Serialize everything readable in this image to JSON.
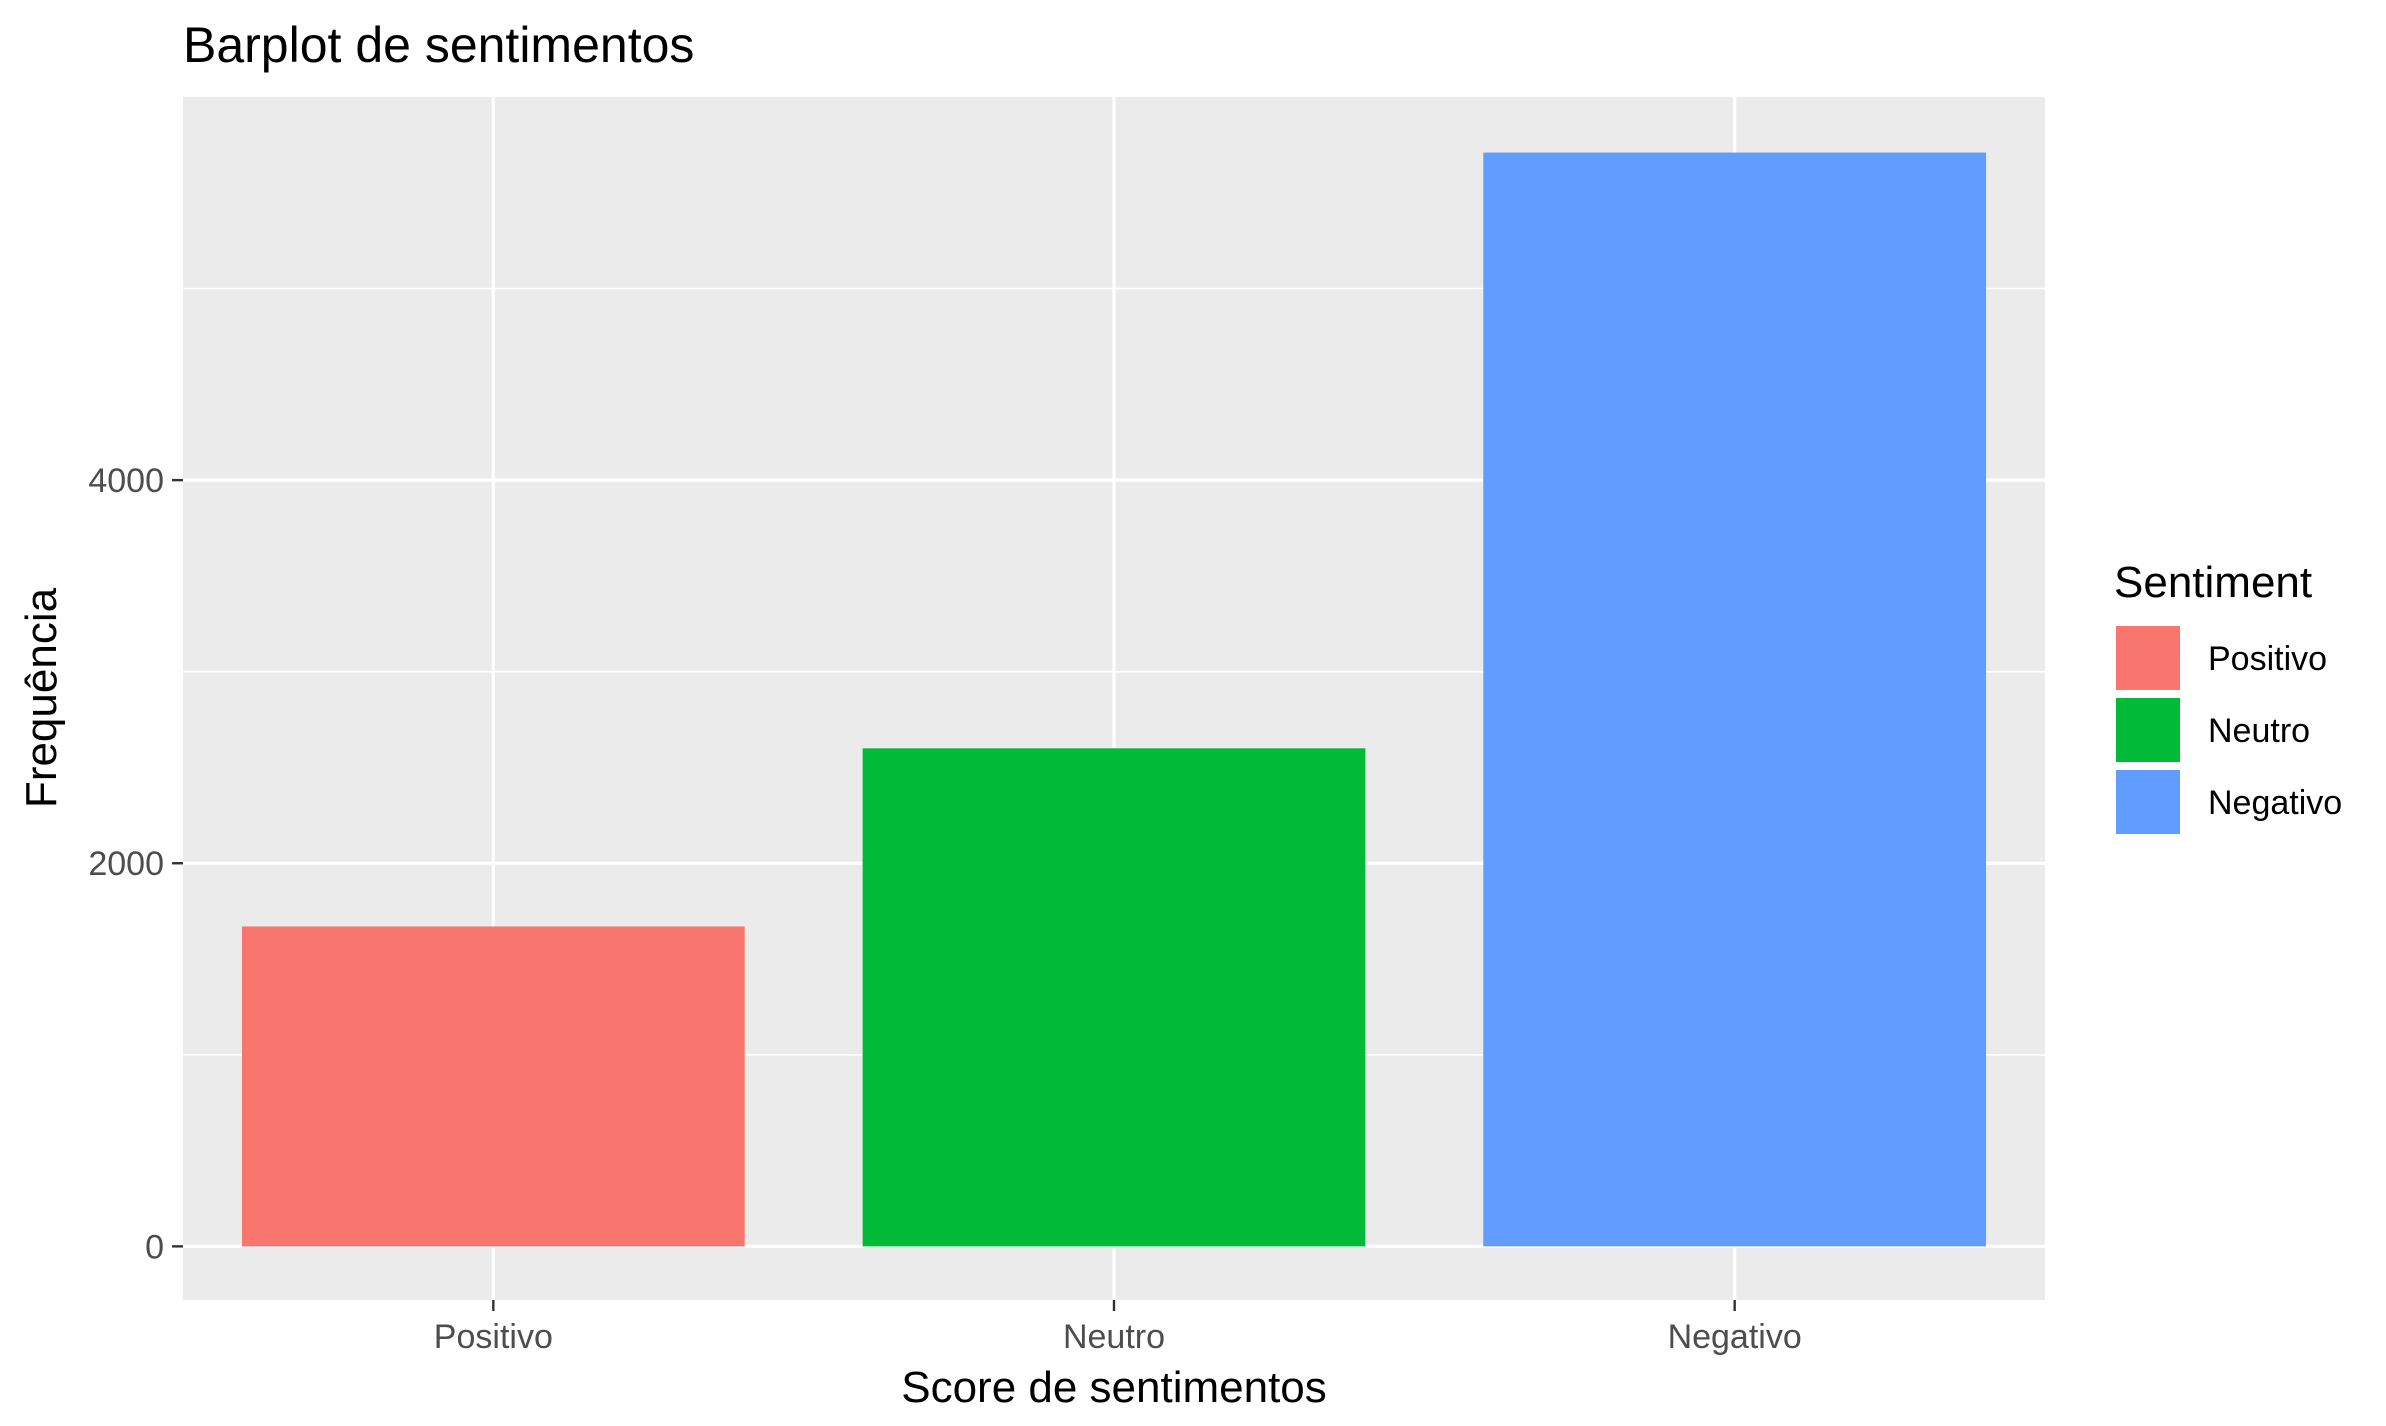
{
  "chart_data": {
    "type": "bar",
    "title": "Barplot de sentimentos",
    "xlabel": "Score de sentimentos",
    "ylabel": "Frequência",
    "categories": [
      "Positivo",
      "Neutro",
      "Negativo"
    ],
    "values": [
      1670,
      2600,
      5710
    ],
    "colors": [
      "#F8766D",
      "#00BA38",
      "#619CFF"
    ],
    "ylim": [
      -280,
      6000
    ],
    "yticks": [
      0,
      2000,
      4000
    ],
    "y_tick_labels": [
      "0",
      "2000",
      "4000"
    ],
    "y_minor_ticks": [
      1000,
      3000,
      5000
    ],
    "grid": true,
    "panel_background": "#EBEBEB",
    "legend": {
      "title": "Sentiment",
      "position": "right",
      "entries": [
        "Positivo",
        "Neutro",
        "Negativo"
      ]
    }
  }
}
